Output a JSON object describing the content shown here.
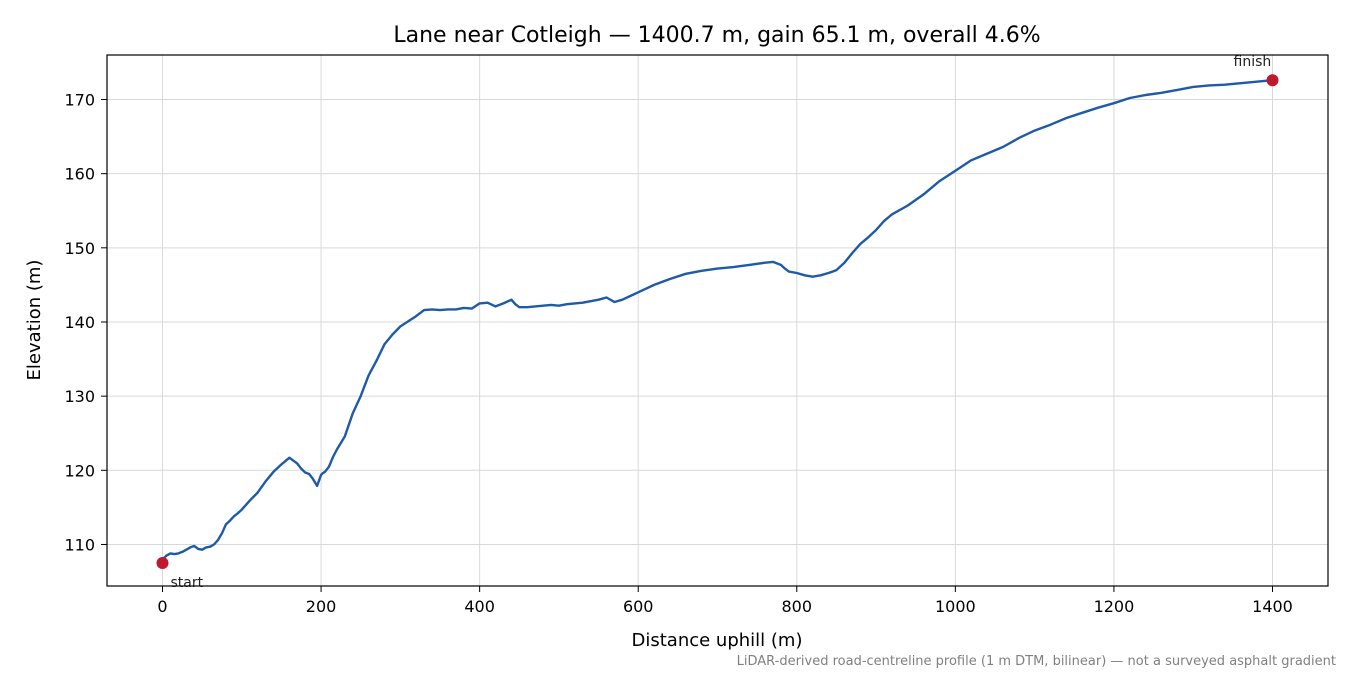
{
  "chart_data": {
    "type": "line",
    "title": "Lane near Cotleigh — 1400.7 m, gain 65.1 m, overall 4.6%",
    "xlabel": "Distance uphill (m)",
    "ylabel": "Elevation (m)",
    "xlim": [
      -70,
      1470
    ],
    "ylim": [
      104.4,
      176.0
    ],
    "xticks": [
      0,
      200,
      400,
      600,
      800,
      1000,
      1200,
      1400
    ],
    "yticks": [
      110,
      120,
      130,
      140,
      150,
      160,
      170
    ],
    "grid": true,
    "line_color": "#1f5aa8",
    "marker_color": "#c0182c",
    "series": [
      {
        "x": [
          0,
          5,
          10,
          15,
          20,
          25,
          30,
          35,
          40,
          45,
          50,
          55,
          60,
          65,
          70,
          75,
          80,
          85,
          90,
          95,
          100,
          110,
          120,
          130,
          140,
          150,
          160,
          170,
          175,
          180,
          185,
          190,
          195,
          200,
          202,
          205,
          210,
          215,
          220,
          230,
          240,
          250,
          260,
          270,
          280,
          290,
          300,
          310,
          320,
          330,
          340,
          350,
          360,
          370,
          380,
          390,
          400,
          410,
          420,
          430,
          440,
          445,
          450,
          460,
          470,
          480,
          490,
          500,
          510,
          520,
          530,
          540,
          550,
          560,
          570,
          580,
          590,
          600,
          620,
          640,
          660,
          680,
          700,
          720,
          740,
          760,
          770,
          780,
          785,
          790,
          800,
          810,
          820,
          830,
          840,
          845,
          850,
          860,
          870,
          880,
          890,
          900,
          910,
          920,
          940,
          960,
          980,
          1000,
          1020,
          1040,
          1060,
          1080,
          1100,
          1120,
          1140,
          1160,
          1180,
          1200,
          1220,
          1240,
          1260,
          1280,
          1300,
          1320,
          1340,
          1360,
          1380,
          1400
        ],
        "y": [
          108.0,
          108.5,
          108.8,
          108.7,
          108.8,
          109.0,
          109.3,
          109.6,
          109.8,
          109.4,
          109.3,
          109.6,
          109.7,
          110.0,
          110.6,
          111.5,
          112.7,
          113.2,
          113.8,
          114.2,
          114.7,
          115.9,
          117.0,
          118.5,
          119.8,
          120.8,
          121.7,
          120.9,
          120.2,
          119.7,
          119.5,
          118.8,
          117.9,
          119.4,
          119.6,
          119.8,
          120.5,
          121.8,
          122.8,
          124.6,
          127.7,
          130.0,
          132.8,
          134.8,
          137.0,
          138.3,
          139.4,
          140.1,
          140.8,
          141.6,
          141.7,
          141.6,
          141.7,
          141.7,
          141.9,
          141.8,
          142.5,
          142.6,
          142.1,
          142.5,
          143.0,
          142.4,
          142.0,
          142.0,
          142.1,
          142.2,
          142.3,
          142.2,
          142.4,
          142.5,
          142.6,
          142.8,
          143.0,
          143.3,
          142.7,
          143.0,
          143.5,
          144.0,
          145.0,
          145.8,
          146.5,
          146.9,
          147.2,
          147.4,
          147.7,
          148.0,
          148.1,
          147.7,
          147.2,
          146.8,
          146.6,
          146.3,
          146.1,
          146.3,
          146.6,
          146.8,
          147.0,
          148.0,
          149.3,
          150.5,
          151.4,
          152.4,
          153.6,
          154.5,
          155.7,
          157.2,
          159.0,
          160.4,
          161.8,
          162.7,
          163.6,
          164.8,
          165.8,
          166.6,
          167.5,
          168.2,
          168.9,
          169.5,
          170.2,
          170.6,
          170.9,
          171.3,
          171.7,
          171.9,
          172.0,
          172.2,
          172.4,
          172.6
        ]
      }
    ],
    "annotations": [
      {
        "text": "start",
        "x": 0,
        "y": 107.5,
        "label_side": "below-right"
      },
      {
        "text": "finish",
        "x": 1400,
        "y": 172.6,
        "label_side": "above-left"
      }
    ]
  },
  "footnote": "LiDAR-derived road-centreline profile (1 m DTM, bilinear) — not a surveyed asphalt gradient"
}
